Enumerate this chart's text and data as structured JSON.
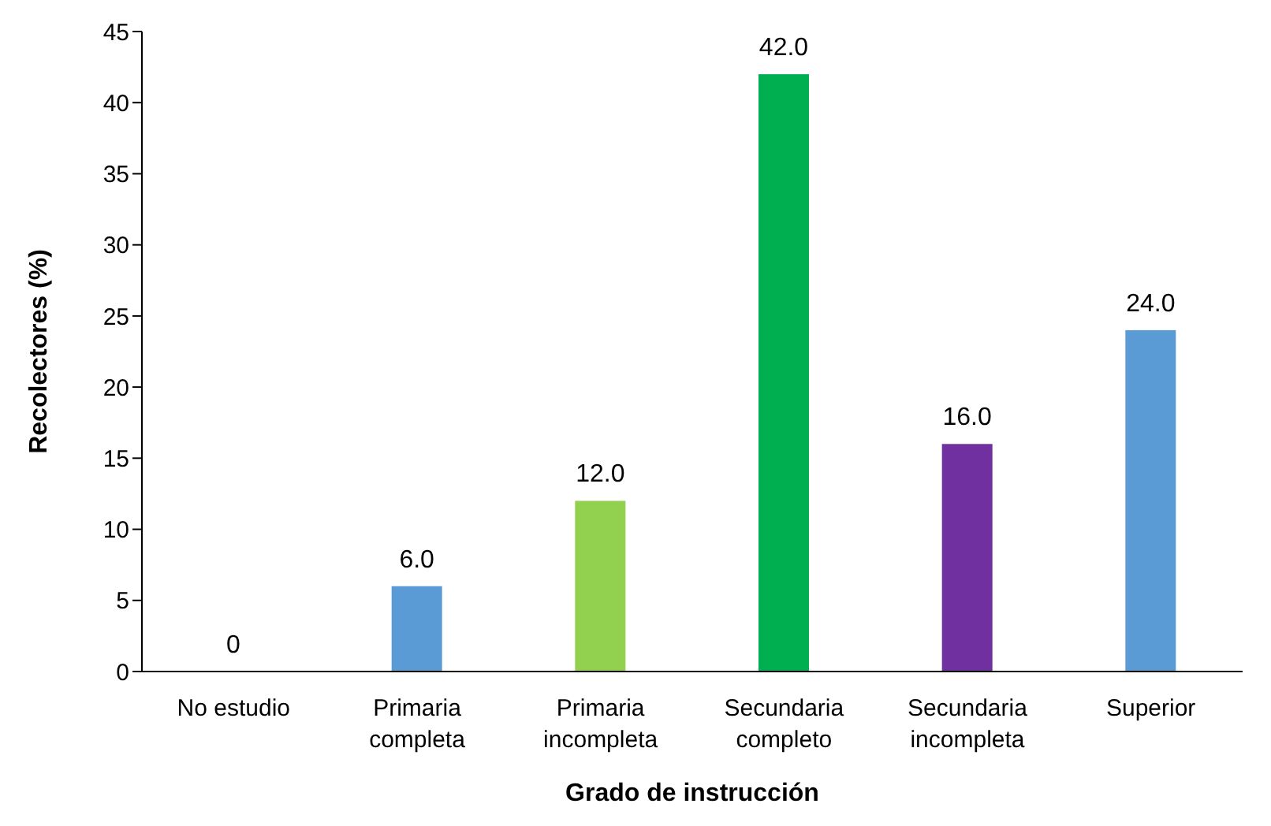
{
  "chart_data": {
    "type": "bar",
    "xlabel": "Grado de instrucción",
    "ylabel": "Recolectores (%)",
    "categories": [
      "No estudio",
      "Primaria completa",
      "Primaria incompleta",
      "Secundaria completo",
      "Secundaria incompleta",
      "Superior"
    ],
    "values": [
      0,
      6,
      12,
      42,
      16,
      24
    ],
    "colors": [
      "#5b9bd5",
      "#5b9bd5",
      "#92d050",
      "#00b050",
      "#7030a0",
      "#5b9bd5"
    ],
    "value_labels": [
      "0",
      "6.0",
      "12.0",
      "42.0",
      "16.0",
      "24.0"
    ],
    "ylim": [
      0,
      45
    ],
    "yticks": [
      0,
      5,
      10,
      15,
      20,
      25,
      30,
      35,
      40,
      45
    ],
    "grid": false,
    "legend": false
  }
}
